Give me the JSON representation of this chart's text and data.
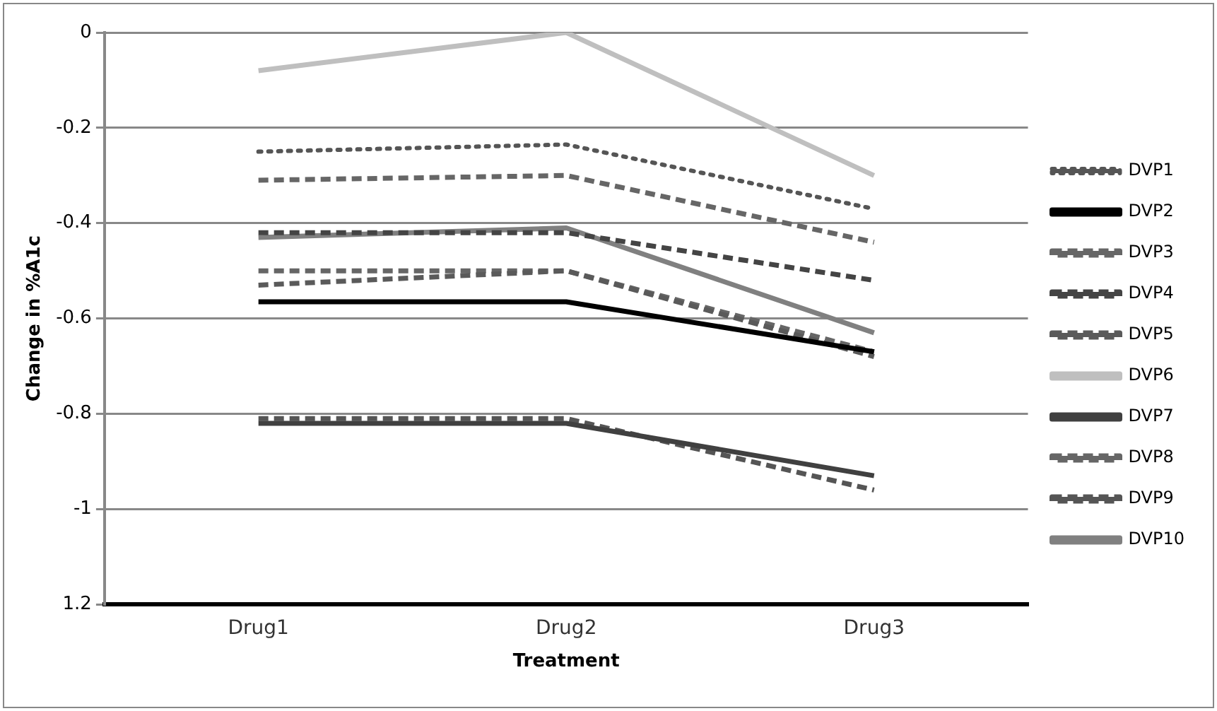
{
  "chart_data": {
    "type": "line",
    "xlabel": "Treatment",
    "ylabel": "Change in %A1c",
    "categories": [
      "Drug1",
      "Drug2",
      "Drug3"
    ],
    "series": [
      {
        "name": "DVP1",
        "color": "#555555",
        "line_style": "dotted",
        "values": [
          -0.25,
          -0.235,
          -0.37
        ]
      },
      {
        "name": "DVP2",
        "color": "#000000",
        "line_style": "solid",
        "values": [
          -0.565,
          -0.565,
          -0.67
        ]
      },
      {
        "name": "DVP3",
        "color": "#666666",
        "line_style": "dashed",
        "values": [
          -0.31,
          -0.3,
          -0.44
        ]
      },
      {
        "name": "DVP4",
        "color": "#444444",
        "line_style": "dashed",
        "values": [
          -0.42,
          -0.42,
          -0.52
        ]
      },
      {
        "name": "DVP5",
        "color": "#5a5a5a",
        "line_style": "dashed",
        "values": [
          -0.53,
          -0.5,
          -0.68
        ]
      },
      {
        "name": "DVP6",
        "color": "#bfbfbf",
        "line_style": "solid",
        "values": [
          -0.08,
          0,
          -0.3
        ]
      },
      {
        "name": "DVP7",
        "color": "#404040",
        "line_style": "solid",
        "values": [
          -0.82,
          -0.82,
          -0.93
        ]
      },
      {
        "name": "DVP8",
        "color": "#666666",
        "line_style": "dashed",
        "values": [
          -0.5,
          -0.5,
          -0.67
        ]
      },
      {
        "name": "DVP9",
        "color": "#555555",
        "line_style": "dashed",
        "values": [
          -0.81,
          -0.81,
          -0.96
        ]
      },
      {
        "name": "DVP10",
        "color": "#808080",
        "line_style": "solid",
        "values": [
          -0.43,
          -0.41,
          -0.63
        ]
      }
    ],
    "ylim": [
      -1.2,
      0
    ],
    "yticks": [
      0,
      -0.2,
      -0.4,
      -0.6,
      -0.8,
      -1,
      {
        "value": -1.2,
        "label": "1.2"
      }
    ],
    "grid": "y",
    "legend": "right",
    "marker": "none"
  }
}
